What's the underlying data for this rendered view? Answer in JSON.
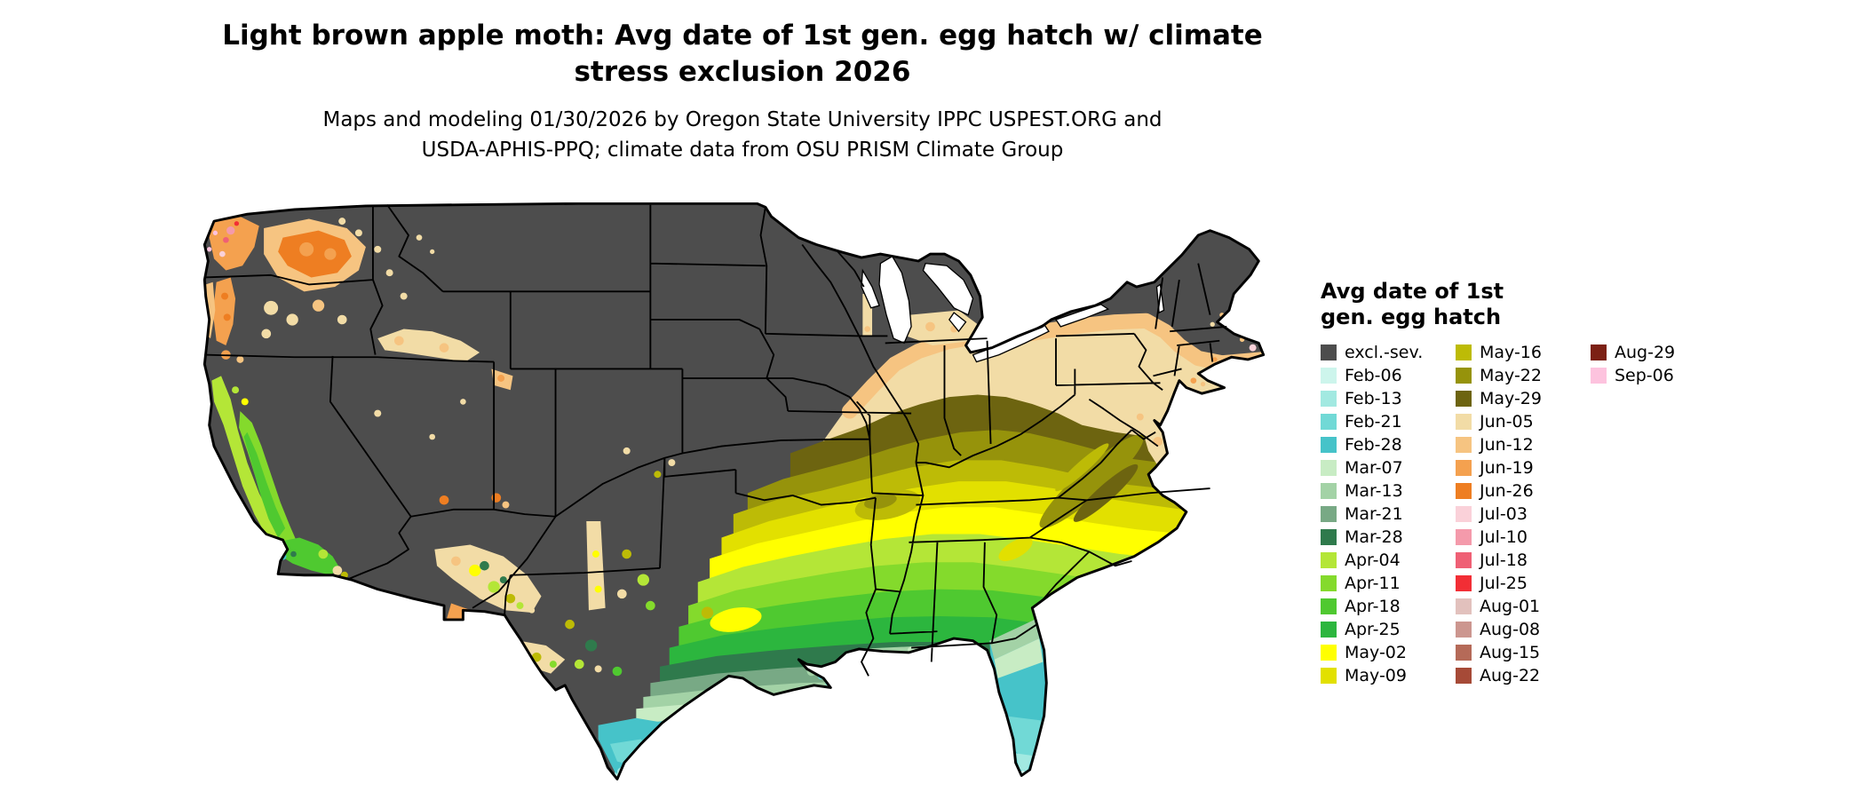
{
  "title": {
    "line1": "Light brown apple moth: Avg date of 1st gen. egg hatch w/ climate",
    "line2": "stress exclusion 2026"
  },
  "subtitle": {
    "line1": "Maps and modeling 01/30/2026 by Oregon State University IPPC USPEST.ORG and",
    "line2": "USDA-APHIS-PPQ; climate data from OSU PRISM Climate Group"
  },
  "legend": {
    "title_line1": "Avg date of 1st",
    "title_line2": "gen. egg hatch",
    "columns": [
      [
        {
          "label": "excl.-sev.",
          "color": "#4d4d4d"
        },
        {
          "label": "Feb-06",
          "color": "#cdf5ec"
        },
        {
          "label": "Feb-13",
          "color": "#a2e9e1"
        },
        {
          "label": "Feb-21",
          "color": "#71d9d6"
        },
        {
          "label": "Feb-28",
          "color": "#46c3c9"
        },
        {
          "label": "Mar-07",
          "color": "#c8ecc4"
        },
        {
          "label": "Mar-13",
          "color": "#a3d2a6"
        },
        {
          "label": "Mar-21",
          "color": "#78a985"
        },
        {
          "label": "Mar-28",
          "color": "#2f7a4c"
        },
        {
          "label": "Apr-04",
          "color": "#b4e637"
        },
        {
          "label": "Apr-11",
          "color": "#84da2c"
        },
        {
          "label": "Apr-18",
          "color": "#4fc930"
        },
        {
          "label": "Apr-25",
          "color": "#2cb63e"
        },
        {
          "label": "May-02",
          "color": "#ffff00"
        },
        {
          "label": "May-09",
          "color": "#e2e000"
        }
      ],
      [
        {
          "label": "May-16",
          "color": "#bdbb06"
        },
        {
          "label": "May-22",
          "color": "#96930b"
        },
        {
          "label": "May-29",
          "color": "#6d6410"
        },
        {
          "label": "Jun-05",
          "color": "#f2dca6"
        },
        {
          "label": "Jun-12",
          "color": "#f6c481"
        },
        {
          "label": "Jun-19",
          "color": "#f4a14f"
        },
        {
          "label": "Jun-26",
          "color": "#ee7e22"
        },
        {
          "label": "Jul-03",
          "color": "#fad1d9"
        },
        {
          "label": "Jul-10",
          "color": "#f49aab"
        },
        {
          "label": "Jul-18",
          "color": "#ef6075"
        },
        {
          "label": "Jul-25",
          "color": "#f22e35"
        },
        {
          "label": "Aug-01",
          "color": "#e2c1bd"
        },
        {
          "label": "Aug-08",
          "color": "#cc968f"
        },
        {
          "label": "Aug-15",
          "color": "#b56a58"
        },
        {
          "label": "Aug-22",
          "color": "#a64a37"
        }
      ],
      [
        {
          "label": "Aug-29",
          "color": "#7c2014"
        },
        {
          "label": "Sep-06",
          "color": "#fdc3de"
        }
      ]
    ]
  },
  "map": {
    "water_color": "#ffffff",
    "border_color": "#000000"
  }
}
